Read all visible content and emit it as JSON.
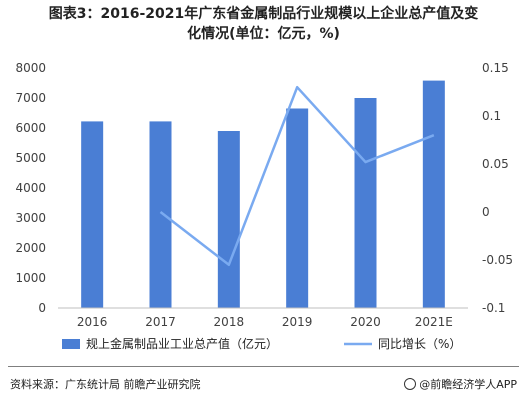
{
  "header": {
    "title_line1": "图表3：2016-2021年广东省金属制品行业规模以上企业总产值及变",
    "title_line2": "化情况(单位：亿元，%)"
  },
  "chart_data": {
    "type": "bar",
    "categories": [
      "2016",
      "2017",
      "2018",
      "2019",
      "2020",
      "2021E"
    ],
    "series": [
      {
        "name": "规上金属制品业工业总产值（亿元）",
        "kind": "bar",
        "axis": "left",
        "color": "#4a7ed4",
        "values": [
          6220,
          6220,
          5900,
          6650,
          7000,
          7580
        ]
      },
      {
        "name": "同比增长（%）",
        "kind": "line",
        "axis": "right",
        "color": "#7aaaf0",
        "values": [
          null,
          0.0,
          -0.055,
          0.13,
          0.052,
          0.08
        ]
      }
    ],
    "y_left": {
      "min": 0,
      "max": 8000,
      "ticks": [
        "0",
        "1000",
        "2000",
        "3000",
        "4000",
        "5000",
        "6000",
        "7000",
        "8000"
      ]
    },
    "y_right": {
      "min": -0.1,
      "max": 0.15,
      "ticks": [
        "-0.1",
        "-0.05",
        "0",
        "0.05",
        "0.1",
        "0.15"
      ]
    },
    "grid": false,
    "legend_position": "bottom"
  },
  "footer": {
    "source": "资料来源：广东统计局 前瞻产业研究院",
    "brand": "@前瞻经济学人APP"
  }
}
